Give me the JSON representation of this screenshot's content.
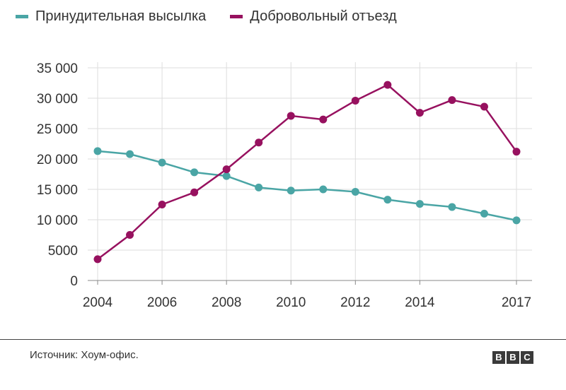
{
  "colors": {
    "series1": "#4aa5a5",
    "series2": "#97115f",
    "grid": "#dddddd",
    "axis": "#888888"
  },
  "footer": {
    "source": "Источник: Хоум-офис.",
    "logo": [
      "B",
      "B",
      "C"
    ]
  },
  "chart_data": {
    "type": "line",
    "x": [
      2004,
      2005,
      2006,
      2007,
      2008,
      2009,
      2010,
      2011,
      2012,
      2013,
      2014,
      2015,
      2016,
      2017
    ],
    "xticks": [
      2004,
      2006,
      2008,
      2010,
      2012,
      2014,
      2017
    ],
    "xtick_labels": [
      "2004",
      "2006",
      "2008",
      "2010",
      "2012",
      "2014",
      "2017"
    ],
    "yticks": [
      0,
      5000,
      10000,
      15000,
      20000,
      25000,
      30000,
      35000
    ],
    "ytick_labels": [
      "0",
      "5000",
      "10 000",
      "15 000",
      "20 000",
      "25 000",
      "30 000",
      "35 000"
    ],
    "xlim": [
      2004,
      2017
    ],
    "ylim": [
      0,
      35000
    ],
    "grid": true,
    "legend_position": "top-left",
    "series": [
      {
        "name": "Принудительная высылка",
        "color": "#4aa5a5",
        "values": [
          21300,
          20800,
          19400,
          17800,
          17200,
          15300,
          14800,
          15000,
          14600,
          13300,
          12600,
          12100,
          11000,
          9900
        ]
      },
      {
        "name": "Добровольный отъезд",
        "color": "#97115f",
        "values": [
          3500,
          7500,
          12500,
          14500,
          18300,
          22700,
          27100,
          26500,
          29600,
          32200,
          27600,
          29700,
          28600,
          21200
        ]
      }
    ]
  }
}
